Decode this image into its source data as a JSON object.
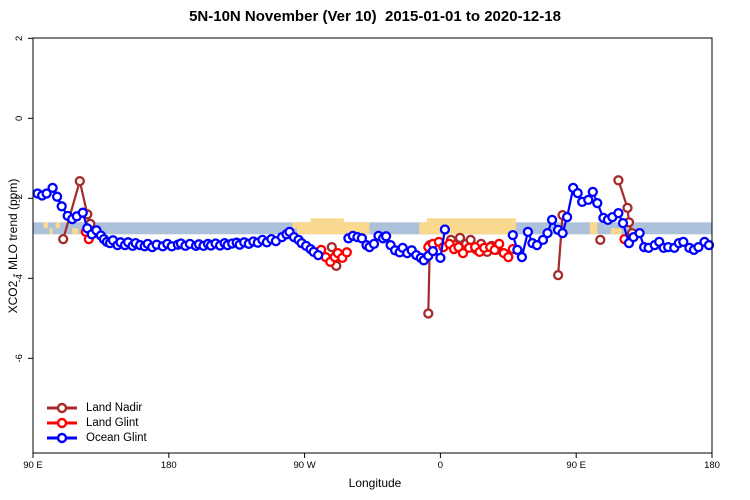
{
  "title": "5N-10N November (Ver 10)  2015-01-01 to 2020-12-18",
  "chart_data": {
    "type": "line",
    "title": "5N-10N November (Ver 10)  2015-01-01 to 2020-12-18",
    "xlabel": "Longitude",
    "ylabel": "XCO2 - MLO trend (ppm)",
    "x_axis": {
      "range_deg_from_90E": [
        0,
        450
      ],
      "ticks": [
        0,
        90,
        180,
        270,
        360,
        450
      ],
      "tick_labels": [
        "90 E",
        "180",
        "90 W",
        "0",
        "90 E",
        "180"
      ]
    },
    "y_axis": {
      "range": [
        -8.4,
        2
      ],
      "ticks": [
        2,
        0,
        -2,
        -4,
        -6
      ],
      "tick_labels": [
        "2",
        "0",
        "-2",
        "-4",
        "-6"
      ]
    },
    "grid": "off",
    "legend_position": "bottom-left",
    "reference_band": {
      "description": "5N-10N latitude map strip: ocean in light blue, land in yellow",
      "value_from": -2.6,
      "value_to": -2.9,
      "ocean_color": "#adc1da",
      "land_color": "#fad98e",
      "land_patches": [
        {
          "lon0": 7,
          "lon1": 10,
          "kind": "upper"
        },
        {
          "lon0": 11,
          "lon1": 13,
          "kind": "lower"
        },
        {
          "lon0": 15,
          "lon1": 18,
          "kind": "upper"
        },
        {
          "lon0": 26,
          "lon1": 30,
          "kind": "lower"
        },
        {
          "lon0": 172,
          "lon1": 175,
          "kind": "upper"
        },
        {
          "lon0": 175,
          "lon1": 223,
          "kind": "full"
        },
        {
          "lon0": 184,
          "lon1": 206,
          "kind": "bump"
        },
        {
          "lon0": 256,
          "lon1": 320,
          "kind": "full"
        },
        {
          "lon0": 261,
          "lon1": 320,
          "kind": "bump"
        },
        {
          "lon0": 369,
          "lon1": 374,
          "kind": "full"
        },
        {
          "lon0": 383,
          "lon1": 390,
          "kind": "lower"
        }
      ]
    },
    "series": [
      {
        "name": "Land Nadir",
        "color": "#a52a2a",
        "points": [
          [
            20,
            -3.02
          ],
          [
            31,
            -1.57
          ],
          [
            36,
            -2.4
          ],
          [
            38,
            -2.64
          ],
          [
            40,
            -2.87
          ],
          [
            198,
            -3.22
          ],
          [
            201,
            -3.69
          ],
          [
            263,
            -3.17
          ],
          [
            262,
            -4.88
          ],
          [
            277,
            -3.04
          ],
          [
            280,
            -3.17
          ],
          [
            283,
            -2.99
          ],
          [
            287,
            -3.14
          ],
          [
            290,
            -3.04
          ],
          [
            294,
            -3.29
          ],
          [
            297,
            -3.14
          ],
          [
            301,
            -3.34
          ],
          [
            304,
            -3.19
          ],
          [
            307,
            -3.29
          ],
          [
            348,
            -3.92
          ],
          [
            351,
            -2.42
          ],
          [
            376,
            -3.04
          ],
          [
            388,
            -1.55
          ],
          [
            394,
            -2.24
          ],
          [
            395,
            -2.6
          ],
          [
            397,
            -2.87
          ]
        ]
      },
      {
        "name": "Land Glint",
        "color": "#ff0000",
        "points": [
          [
            35,
            -2.84
          ],
          [
            37,
            -3.02
          ],
          [
            39,
            -2.88
          ],
          [
            191,
            -3.29
          ],
          [
            194,
            -3.47
          ],
          [
            197,
            -3.59
          ],
          [
            200,
            -3.47
          ],
          [
            202,
            -3.37
          ],
          [
            205,
            -3.49
          ],
          [
            208,
            -3.35
          ],
          [
            262,
            -3.22
          ],
          [
            265,
            -3.14
          ],
          [
            269,
            -3.09
          ],
          [
            272,
            -3.22
          ],
          [
            276,
            -3.14
          ],
          [
            279,
            -3.27
          ],
          [
            282,
            -3.22
          ],
          [
            285,
            -3.37
          ],
          [
            289,
            -3.24
          ],
          [
            293,
            -3.22
          ],
          [
            296,
            -3.34
          ],
          [
            299,
            -3.24
          ],
          [
            303,
            -3.22
          ],
          [
            306,
            -3.29
          ],
          [
            309,
            -3.14
          ],
          [
            312,
            -3.37
          ],
          [
            315,
            -3.47
          ],
          [
            318,
            -3.27
          ],
          [
            392,
            -3.02
          ]
        ]
      },
      {
        "name": "Ocean Glint",
        "color": "#0000ff",
        "points": [
          [
            3,
            -1.88
          ],
          [
            6,
            -1.93
          ],
          [
            9,
            -1.88
          ],
          [
            13,
            -1.74
          ],
          [
            16,
            -1.96
          ],
          [
            19,
            -2.2
          ],
          [
            23,
            -2.44
          ],
          [
            26,
            -2.52
          ],
          [
            29,
            -2.45
          ],
          [
            33,
            -2.36
          ],
          [
            36,
            -2.75
          ],
          [
            39,
            -2.9
          ],
          [
            42,
            -2.8
          ],
          [
            45,
            -2.93
          ],
          [
            47,
            -3.02
          ],
          [
            49,
            -3.09
          ],
          [
            51,
            -3.12
          ],
          [
            53,
            -3.05
          ],
          [
            56,
            -3.17
          ],
          [
            58,
            -3.1
          ],
          [
            61,
            -3.17
          ],
          [
            63,
            -3.1
          ],
          [
            66,
            -3.19
          ],
          [
            68,
            -3.12
          ],
          [
            71,
            -3.17
          ],
          [
            74,
            -3.2
          ],
          [
            76,
            -3.14
          ],
          [
            79,
            -3.22
          ],
          [
            82,
            -3.16
          ],
          [
            86,
            -3.2
          ],
          [
            89,
            -3.14
          ],
          [
            92,
            -3.2
          ],
          [
            96,
            -3.16
          ],
          [
            98,
            -3.13
          ],
          [
            101,
            -3.19
          ],
          [
            104,
            -3.14
          ],
          [
            108,
            -3.19
          ],
          [
            110,
            -3.15
          ],
          [
            113,
            -3.19
          ],
          [
            116,
            -3.14
          ],
          [
            118,
            -3.18
          ],
          [
            121,
            -3.13
          ],
          [
            124,
            -3.18
          ],
          [
            127,
            -3.12
          ],
          [
            129,
            -3.17
          ],
          [
            132,
            -3.13
          ],
          [
            135,
            -3.11
          ],
          [
            137,
            -3.16
          ],
          [
            140,
            -3.1
          ],
          [
            143,
            -3.14
          ],
          [
            146,
            -3.08
          ],
          [
            149,
            -3.11
          ],
          [
            152,
            -3.04
          ],
          [
            155,
            -3.1
          ],
          [
            158,
            -3.02
          ],
          [
            161,
            -3.07
          ],
          [
            165,
            -2.97
          ],
          [
            168,
            -2.9
          ],
          [
            170,
            -2.84
          ],
          [
            173,
            -2.97
          ],
          [
            176,
            -3.04
          ],
          [
            178,
            -3.12
          ],
          [
            181,
            -3.19
          ],
          [
            184,
            -3.27
          ],
          [
            186,
            -3.34
          ],
          [
            189,
            -3.42
          ],
          [
            209,
            -3.0
          ],
          [
            212,
            -2.94
          ],
          [
            215,
            -2.97
          ],
          [
            218,
            -3.0
          ],
          [
            221,
            -3.17
          ],
          [
            223,
            -3.22
          ],
          [
            226,
            -3.14
          ],
          [
            229,
            -2.94
          ],
          [
            232,
            -3.0
          ],
          [
            234,
            -2.95
          ],
          [
            237,
            -3.17
          ],
          [
            240,
            -3.3
          ],
          [
            243,
            -3.35
          ],
          [
            245,
            -3.24
          ],
          [
            248,
            -3.37
          ],
          [
            251,
            -3.3
          ],
          [
            254,
            -3.42
          ],
          [
            257,
            -3.49
          ],
          [
            259,
            -3.55
          ],
          [
            262,
            -3.44
          ],
          [
            265,
            -3.32
          ],
          [
            270,
            -3.49
          ],
          [
            273,
            -2.78
          ],
          [
            318,
            -2.92
          ],
          [
            321,
            -3.29
          ],
          [
            324,
            -3.47
          ],
          [
            328,
            -2.84
          ],
          [
            331,
            -3.12
          ],
          [
            334,
            -3.17
          ],
          [
            338,
            -3.04
          ],
          [
            341,
            -2.87
          ],
          [
            344,
            -2.54
          ],
          [
            348,
            -2.79
          ],
          [
            351,
            -2.87
          ],
          [
            354,
            -2.47
          ],
          [
            358,
            -1.74
          ],
          [
            361,
            -1.87
          ],
          [
            364,
            -2.09
          ],
          [
            368,
            -2.04
          ],
          [
            371,
            -1.84
          ],
          [
            374,
            -2.12
          ],
          [
            378,
            -2.49
          ],
          [
            381,
            -2.54
          ],
          [
            384,
            -2.47
          ],
          [
            388,
            -2.37
          ],
          [
            391,
            -2.62
          ],
          [
            395,
            -3.12
          ],
          [
            398,
            -2.97
          ],
          [
            402,
            -2.87
          ],
          [
            405,
            -3.22
          ],
          [
            408,
            -3.24
          ],
          [
            412,
            -3.17
          ],
          [
            415,
            -3.09
          ],
          [
            418,
            -3.24
          ],
          [
            421,
            -3.22
          ],
          [
            425,
            -3.24
          ],
          [
            428,
            -3.12
          ],
          [
            431,
            -3.09
          ],
          [
            435,
            -3.24
          ],
          [
            438,
            -3.29
          ],
          [
            441,
            -3.22
          ],
          [
            445,
            -3.09
          ],
          [
            448,
            -3.17
          ]
        ]
      }
    ]
  }
}
